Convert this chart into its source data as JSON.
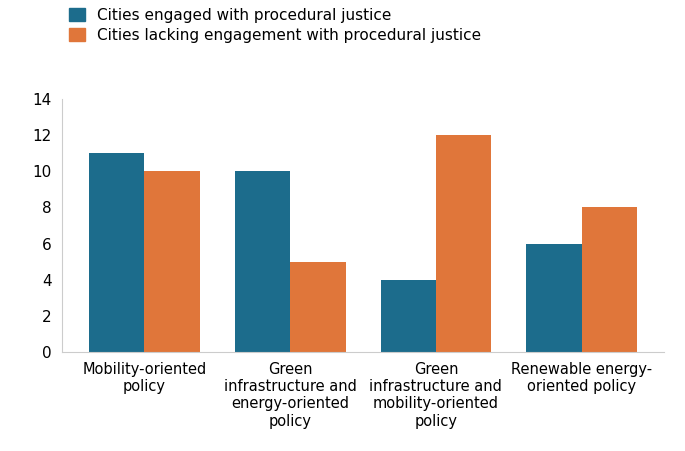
{
  "categories": [
    "Mobility-oriented\npolicy",
    "Green\ninfrastructure and\nenergy-oriented\npolicy",
    "Green\ninfrastructure and\nmobility-oriented\npolicy",
    "Renewable energy-\noriented policy"
  ],
  "series": [
    {
      "label": "Cities engaged with procedural justice",
      "values": [
        11,
        10,
        4,
        6
      ],
      "color": "#1c6c8c"
    },
    {
      "label": "Cities lacking engagement with procedural justice",
      "values": [
        10,
        5,
        12,
        8
      ],
      "color": "#e0763a"
    }
  ],
  "ylim": [
    0,
    14
  ],
  "yticks": [
    0,
    2,
    4,
    6,
    8,
    10,
    12,
    14
  ],
  "bar_width": 0.38,
  "background_color": "#ffffff",
  "tick_fontsize": 11,
  "legend_fontsize": 11,
  "xlabel_fontsize": 10.5
}
